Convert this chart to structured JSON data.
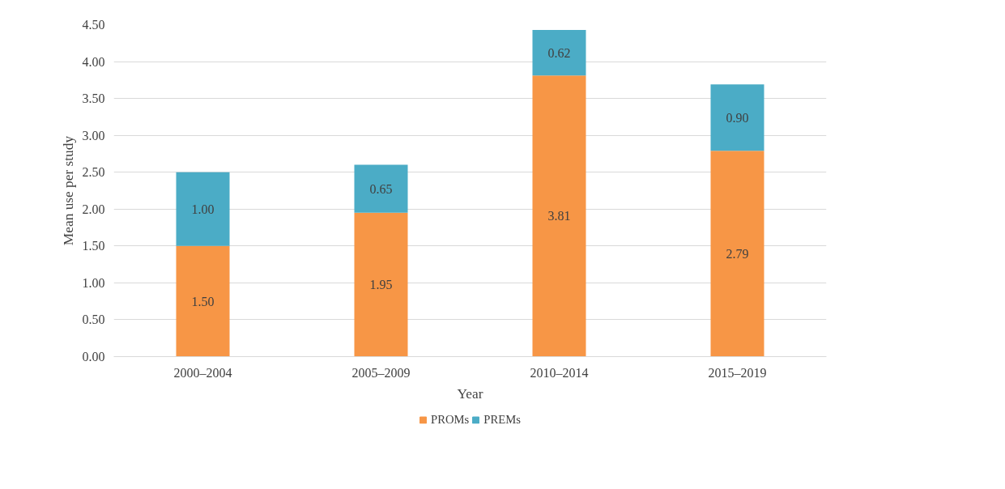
{
  "chart_data": {
    "type": "bar",
    "stacked": true,
    "xlabel": "Year",
    "ylabel": "Mean use per study",
    "categories": [
      "2000–2004",
      "2005–2009",
      "2010–2014",
      "2015–2019"
    ],
    "series": [
      {
        "name": "PROMs",
        "color": "#f79646",
        "values": [
          1.5,
          1.95,
          3.81,
          2.79
        ],
        "value_labels": [
          "1.50",
          "1.95",
          "3.81",
          "2.79"
        ]
      },
      {
        "name": "PREMs",
        "color": "#4bacc6",
        "values": [
          1.0,
          0.65,
          0.62,
          0.9
        ],
        "value_labels": [
          "1.00",
          "0.65",
          "0.62",
          "0.90"
        ]
      }
    ],
    "ylim": [
      0,
      4.5
    ],
    "yticks": [
      {
        "value": 0,
        "label": "0.00"
      },
      {
        "value": 0.5,
        "label": "0.50"
      },
      {
        "value": 1,
        "label": "1.00"
      },
      {
        "value": 1.5,
        "label": "1.50"
      },
      {
        "value": 2,
        "label": "2.00"
      },
      {
        "value": 2.5,
        "label": "2.50"
      },
      {
        "value": 3,
        "label": "3.00"
      },
      {
        "value": 3.5,
        "label": "3.50"
      },
      {
        "value": 4,
        "label": "4.00"
      },
      {
        "value": 4.5,
        "label": "4.50"
      }
    ],
    "grid": "y",
    "legend": "bottom"
  }
}
